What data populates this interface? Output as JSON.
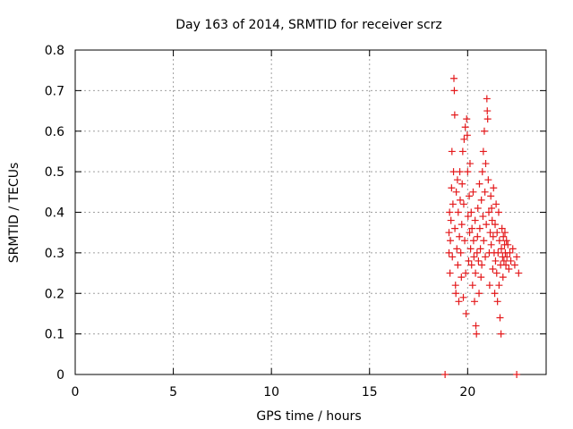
{
  "chart_data": {
    "type": "scatter",
    "title": "Day 163 of 2014, SRMTID for receiver scrz",
    "xlabel": "GPS time / hours",
    "ylabel": "SRMTID / TECUs",
    "xlim": [
      0,
      24
    ],
    "ylim": [
      0,
      0.8
    ],
    "grid": true,
    "x_ticks": [
      0,
      5,
      10,
      15,
      20
    ],
    "x_tick_labels": [
      "0",
      "5",
      "10",
      "15",
      "20"
    ],
    "y_ticks": [
      0,
      0.1,
      0.2,
      0.3,
      0.4,
      0.5,
      0.6,
      0.7,
      0.8
    ],
    "y_tick_labels": [
      "0",
      "0.1",
      "0.2",
      "0.3",
      "0.4",
      "0.5",
      "0.6",
      "0.7",
      "0.8"
    ],
    "series": [
      {
        "name": "SRMTID",
        "color": "#e41a1c",
        "marker": "plus",
        "points": [
          [
            18.85,
            0.0
          ],
          [
            22.5,
            0.0
          ],
          [
            19.05,
            0.3
          ],
          [
            19.05,
            0.35
          ],
          [
            19.08,
            0.4
          ],
          [
            19.1,
            0.25
          ],
          [
            19.12,
            0.33
          ],
          [
            19.15,
            0.38
          ],
          [
            19.18,
            0.46
          ],
          [
            19.2,
            0.55
          ],
          [
            19.22,
            0.29
          ],
          [
            19.25,
            0.42
          ],
          [
            19.3,
            0.73
          ],
          [
            19.32,
            0.7
          ],
          [
            19.34,
            0.64
          ],
          [
            19.28,
            0.5
          ],
          [
            19.35,
            0.36
          ],
          [
            19.38,
            0.22
          ],
          [
            19.4,
            0.2
          ],
          [
            19.42,
            0.45
          ],
          [
            19.45,
            0.31
          ],
          [
            19.48,
            0.48
          ],
          [
            19.5,
            0.27
          ],
          [
            19.52,
            0.4
          ],
          [
            19.55,
            0.18
          ],
          [
            19.58,
            0.34
          ],
          [
            19.6,
            0.5
          ],
          [
            19.62,
            0.43
          ],
          [
            19.65,
            0.3
          ],
          [
            19.68,
            0.24
          ],
          [
            19.7,
            0.37
          ],
          [
            19.72,
            0.47
          ],
          [
            19.75,
            0.55
          ],
          [
            19.78,
            0.19
          ],
          [
            19.8,
            0.42
          ],
          [
            19.82,
            0.58
          ],
          [
            19.85,
            0.33
          ],
          [
            19.88,
            0.61
          ],
          [
            19.9,
            0.25
          ],
          [
            19.92,
            0.15
          ],
          [
            19.95,
            0.63
          ],
          [
            19.98,
            0.59
          ],
          [
            20.0,
            0.5
          ],
          [
            20.02,
            0.39
          ],
          [
            20.05,
            0.28
          ],
          [
            20.08,
            0.44
          ],
          [
            20.1,
            0.35
          ],
          [
            20.12,
            0.52
          ],
          [
            20.15,
            0.31
          ],
          [
            20.18,
            0.4
          ],
          [
            20.2,
            0.27
          ],
          [
            20.22,
            0.36
          ],
          [
            20.25,
            0.22
          ],
          [
            20.28,
            0.45
          ],
          [
            20.3,
            0.33
          ],
          [
            20.32,
            0.29
          ],
          [
            20.35,
            0.18
          ],
          [
            20.38,
            0.38
          ],
          [
            20.4,
            0.25
          ],
          [
            20.42,
            0.12
          ],
          [
            20.45,
            0.1
          ],
          [
            20.48,
            0.3
          ],
          [
            20.5,
            0.34
          ],
          [
            20.52,
            0.41
          ],
          [
            20.55,
            0.28
          ],
          [
            20.58,
            0.2
          ],
          [
            20.6,
            0.47
          ],
          [
            20.62,
            0.36
          ],
          [
            20.65,
            0.31
          ],
          [
            20.68,
            0.24
          ],
          [
            20.7,
            0.43
          ],
          [
            20.72,
            0.27
          ],
          [
            20.75,
            0.5
          ],
          [
            20.78,
            0.39
          ],
          [
            20.8,
            0.55
          ],
          [
            20.82,
            0.33
          ],
          [
            20.85,
            0.6
          ],
          [
            20.88,
            0.45
          ],
          [
            20.9,
            0.29
          ],
          [
            20.92,
            0.52
          ],
          [
            20.95,
            0.37
          ],
          [
            20.98,
            0.68
          ],
          [
            21.0,
            0.65
          ],
          [
            21.02,
            0.63
          ],
          [
            21.05,
            0.48
          ],
          [
            21.08,
            0.4
          ],
          [
            21.1,
            0.3
          ],
          [
            21.12,
            0.22
          ],
          [
            21.15,
            0.35
          ],
          [
            21.18,
            0.44
          ],
          [
            21.2,
            0.32
          ],
          [
            21.22,
            0.41
          ],
          [
            21.25,
            0.38
          ],
          [
            21.28,
            0.26
          ],
          [
            21.3,
            0.34
          ],
          [
            21.32,
            0.46
          ],
          [
            21.35,
            0.3
          ],
          [
            21.38,
            0.2
          ],
          [
            21.4,
            0.37
          ],
          [
            21.42,
            0.28
          ],
          [
            21.45,
            0.42
          ],
          [
            21.48,
            0.25
          ],
          [
            21.5,
            0.35
          ],
          [
            21.52,
            0.18
          ],
          [
            21.55,
            0.3
          ],
          [
            21.58,
            0.4
          ],
          [
            21.6,
            0.22
          ],
          [
            21.62,
            0.33
          ],
          [
            21.65,
            0.14
          ],
          [
            21.68,
            0.27
          ],
          [
            21.7,
            0.1
          ],
          [
            21.72,
            0.31
          ],
          [
            21.75,
            0.36
          ],
          [
            21.78,
            0.29
          ],
          [
            21.8,
            0.24
          ],
          [
            21.82,
            0.34
          ],
          [
            21.85,
            0.28
          ],
          [
            21.88,
            0.32
          ],
          [
            21.9,
            0.35
          ],
          [
            21.92,
            0.3
          ],
          [
            21.95,
            0.27
          ],
          [
            21.98,
            0.33
          ],
          [
            22.0,
            0.29
          ],
          [
            22.05,
            0.32
          ],
          [
            22.1,
            0.26
          ],
          [
            22.15,
            0.3
          ],
          [
            22.2,
            0.28
          ],
          [
            22.3,
            0.31
          ],
          [
            22.4,
            0.27
          ],
          [
            22.5,
            0.29
          ],
          [
            22.6,
            0.25
          ]
        ]
      }
    ]
  }
}
